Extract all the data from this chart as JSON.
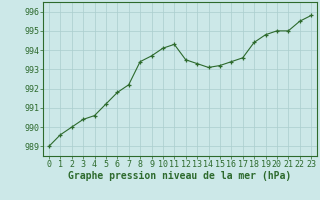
{
  "x": [
    0,
    1,
    2,
    3,
    4,
    5,
    6,
    7,
    8,
    9,
    10,
    11,
    12,
    13,
    14,
    15,
    16,
    17,
    18,
    19,
    20,
    21,
    22,
    23
  ],
  "y": [
    989.0,
    989.6,
    990.0,
    990.4,
    990.6,
    991.2,
    991.8,
    992.2,
    993.4,
    993.7,
    994.1,
    994.3,
    993.5,
    993.3,
    993.1,
    993.2,
    993.4,
    993.6,
    994.4,
    994.8,
    995.0,
    995.0,
    995.5,
    995.8
  ],
  "line_color": "#2d6a2d",
  "marker": "+",
  "marker_color": "#2d6a2d",
  "bg_color": "#cce8e8",
  "grid_color": "#aacece",
  "xlabel": "Graphe pression niveau de la mer (hPa)",
  "xlabel_fontsize": 7,
  "xlabel_color": "#2d6a2d",
  "ylabel_ticks": [
    989,
    990,
    991,
    992,
    993,
    994,
    995,
    996
  ],
  "ylim": [
    988.5,
    996.5
  ],
  "xlim": [
    -0.5,
    23.5
  ],
  "tick_color": "#2d6a2d",
  "tick_fontsize": 6,
  "border_color": "#2d6a2d"
}
